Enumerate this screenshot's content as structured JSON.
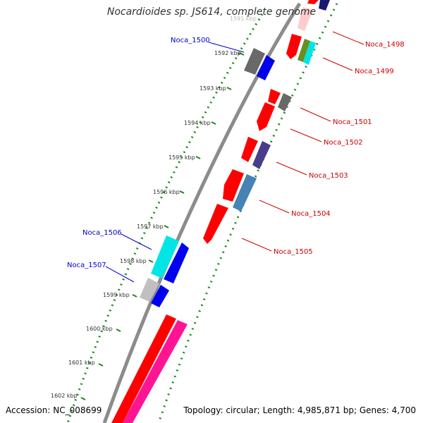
{
  "title": "Nocardioides sp. JS614, complete genome",
  "footer": {
    "accession": "Accession: NC_008699",
    "info": "Topology: circular; Length: 4,985,871 bp; Genes: 4,700"
  },
  "colors": {
    "backbone": "#8c8c8c",
    "ticks_dots": "#1a8a1a",
    "label_left": "#0000cc",
    "label_right": "#cc0000"
  },
  "kbp_labels": [
    "1591 kbp",
    "1592 kbp",
    "1593 kbp",
    "1594 kbp",
    "1595 kbp",
    "1596 kbp",
    "1597 kbp",
    "1598 kbp",
    "1599 kbp",
    "1600 kbp",
    "1601 kbp",
    "1602 kbp"
  ],
  "gene_labels_left": [
    "Noca_1500",
    "Noca_1506",
    "Noca_1507"
  ],
  "gene_labels_right": [
    "Noca_1498",
    "Noca_1499",
    "Noca_1501",
    "Noca_1502",
    "Noca_1503",
    "Noca_1504",
    "Noca_1505"
  ],
  "feature_colors": [
    "#ff0000",
    "#0000ee",
    "#696969",
    "#00e5e5",
    "#c0c0c0",
    "#6b8e23",
    "#483d8b",
    "#4682b4",
    "#ff1493",
    "#191970"
  ]
}
